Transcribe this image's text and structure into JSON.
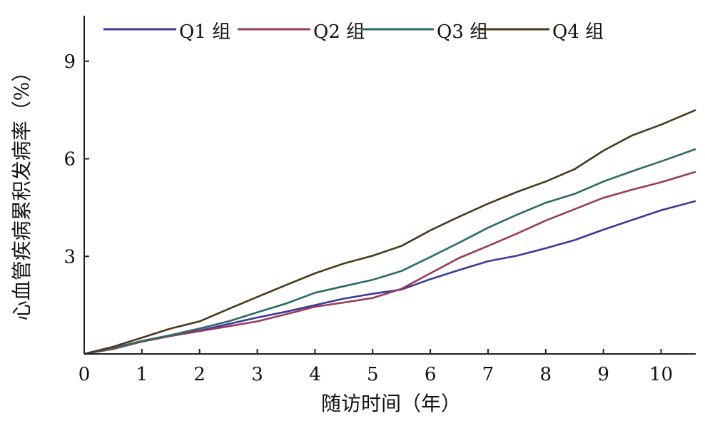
{
  "chart_data": {
    "type": "line",
    "title": "",
    "xlabel": "随访时间（年）",
    "ylabel": "心血管疾病累积发病率（%）",
    "xlim": [
      0,
      10.6
    ],
    "ylim": [
      0,
      10.4
    ],
    "xticks": [
      0,
      1,
      2,
      3,
      4,
      5,
      6,
      7,
      8,
      9,
      10
    ],
    "yticks": [
      3,
      6,
      9
    ],
    "x_tick_labels": [
      "0",
      "1",
      "2",
      "3",
      "4",
      "5",
      "6",
      "7",
      "8",
      "9",
      "10"
    ],
    "y_tick_labels": [
      "3",
      "6",
      "9"
    ],
    "grid": false,
    "legend_position": "top",
    "series": [
      {
        "name": "Q1 组",
        "color": "#3a3a9a",
        "x": [
          0,
          0.5,
          1,
          1.5,
          2,
          2.5,
          3,
          3.5,
          4,
          4.5,
          5,
          5.5,
          6,
          6.5,
          7,
          7.5,
          8,
          8.5,
          9,
          9.5,
          10,
          10.6
        ],
        "y": [
          0,
          0.18,
          0.38,
          0.55,
          0.72,
          0.92,
          1.12,
          1.3,
          1.5,
          1.7,
          1.85,
          1.98,
          2.3,
          2.58,
          2.85,
          3.02,
          3.25,
          3.5,
          3.82,
          4.12,
          4.42,
          4.7
        ]
      },
      {
        "name": "Q2 组",
        "color": "#9a3a5a",
        "x": [
          0,
          0.5,
          1,
          1.5,
          2,
          2.5,
          3,
          3.5,
          4,
          4.5,
          5,
          5.5,
          6,
          6.5,
          7,
          7.5,
          8,
          8.5,
          9,
          9.5,
          10,
          10.6
        ],
        "y": [
          0,
          0.15,
          0.38,
          0.55,
          0.7,
          0.85,
          1.0,
          1.22,
          1.45,
          1.58,
          1.72,
          2.0,
          2.48,
          2.95,
          3.32,
          3.7,
          4.1,
          4.45,
          4.8,
          5.05,
          5.28,
          5.6
        ]
      },
      {
        "name": "Q3 组",
        "color": "#2a6a6a",
        "x": [
          0,
          0.5,
          1,
          1.5,
          2,
          2.5,
          3,
          3.5,
          4,
          4.5,
          5,
          5.5,
          6,
          6.5,
          7,
          7.5,
          8,
          8.5,
          9,
          9.5,
          10,
          10.6
        ],
        "y": [
          0,
          0.18,
          0.4,
          0.58,
          0.78,
          1.0,
          1.28,
          1.55,
          1.88,
          2.08,
          2.28,
          2.55,
          2.98,
          3.42,
          3.88,
          4.28,
          4.65,
          4.92,
          5.3,
          5.62,
          5.92,
          6.3
        ]
      },
      {
        "name": "Q4 组",
        "color": "#4a3a1a",
        "x": [
          0,
          0.5,
          1,
          1.5,
          2,
          2.5,
          3,
          3.5,
          4,
          4.5,
          5,
          5.5,
          6,
          6.5,
          7,
          7.5,
          8,
          8.5,
          9,
          9.5,
          10,
          10.6
        ],
        "y": [
          0,
          0.22,
          0.5,
          0.78,
          1.0,
          1.38,
          1.75,
          2.12,
          2.48,
          2.78,
          3.02,
          3.32,
          3.8,
          4.22,
          4.62,
          4.98,
          5.3,
          5.68,
          6.25,
          6.72,
          7.05,
          7.5
        ]
      }
    ]
  }
}
